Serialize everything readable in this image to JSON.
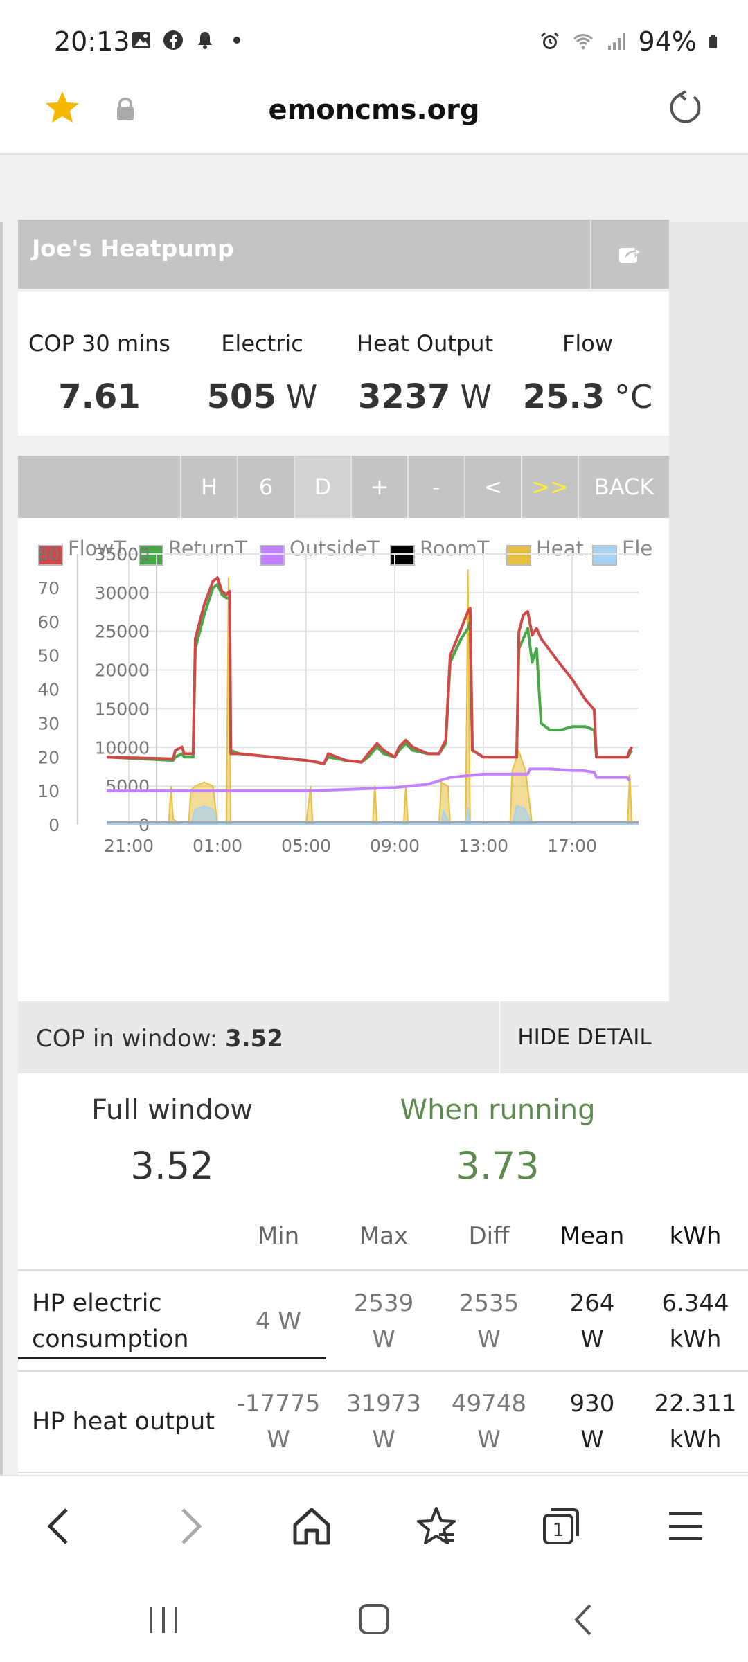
{
  "status_bar": {
    "time": "20:13",
    "battery": "94%",
    "left_icons": [
      "image-icon",
      "facebook-icon",
      "bell-icon",
      "dot-icon"
    ],
    "right_icons": [
      "alarm-icon",
      "wifi-icon",
      "signal-icon",
      "battery-icon"
    ]
  },
  "browser": {
    "url": "emoncms.org"
  },
  "app": {
    "title": "Joe's Heatpump",
    "stats": [
      {
        "label": "COP 30 mins",
        "value": "7.61",
        "unit": ""
      },
      {
        "label": "Electric",
        "value": "505",
        "unit": "W"
      },
      {
        "label": "Heat Output",
        "value": "3237",
        "unit": "W"
      },
      {
        "label": "Flow",
        "value": "25.3",
        "unit": "°C"
      }
    ],
    "toolbar": [
      "H",
      "6",
      "D",
      "+",
      "-",
      "<",
      ">>",
      "BACK"
    ],
    "cop_label": "COP in window:",
    "cop_value": "3.52",
    "hide_detail": "HIDE DETAIL",
    "summary": {
      "full_label": "Full window",
      "full_value": "3.52",
      "running_label": "When running",
      "running_value": "3.73"
    },
    "table": {
      "headers": [
        "",
        "Min",
        "Max",
        "Diff",
        "Mean",
        "kWh"
      ],
      "rows": [
        {
          "label": "HP electric consumption",
          "min": "4 W",
          "max_a": "2539",
          "max_b": "W",
          "diff_a": "2535",
          "diff_b": "W",
          "mean_a": "264",
          "mean_b": "W",
          "kwh_a": "6.344",
          "kwh_b": "kWh"
        },
        {
          "label": "HP heat output",
          "min_a": "-17775",
          "min_b": "W",
          "max_a": "31973",
          "max_b": "W",
          "diff_a": "49748",
          "diff_b": "W",
          "mean_a": "930",
          "mean_b": "W",
          "kwh_a": "22.311",
          "kwh_b": "kWh"
        }
      ]
    }
  },
  "colors": {
    "flow": "#d04848",
    "return": "#48a848",
    "outside": "#c080ff",
    "room": "#000000",
    "heat": "#e8c040",
    "elec": "#a8d0f0"
  },
  "chart_data": {
    "type": "line",
    "legend": [
      "FlowT",
      "ReturnT",
      "OutsideT",
      "RoomT",
      "Heat",
      "Ele"
    ],
    "x_ticks": [
      "21:00",
      "01:00",
      "05:00",
      "09:00",
      "13:00",
      "17:00"
    ],
    "y_left_ticks": [
      "0",
      "10",
      "20",
      "30",
      "40",
      "50",
      "60",
      "70",
      "80"
    ],
    "y_right_ticks": [
      "0",
      "5000",
      "10000",
      "15000",
      "20000",
      "25000",
      "30000",
      "35000"
    ],
    "ylim_left": [
      0,
      80
    ],
    "ylim_right": [
      0,
      35000
    ],
    "x_hours_range": [
      20.0,
      44.0
    ],
    "series": [
      {
        "name": "FlowT",
        "axis": "left",
        "points": [
          [
            20.0,
            20
          ],
          [
            23.0,
            19.5
          ],
          [
            23.1,
            22
          ],
          [
            23.4,
            23
          ],
          [
            23.5,
            21
          ],
          [
            23.9,
            21
          ],
          [
            24.0,
            55
          ],
          [
            24.4,
            65
          ],
          [
            24.8,
            72
          ],
          [
            25.0,
            73
          ],
          [
            25.2,
            69
          ],
          [
            25.4,
            68
          ],
          [
            25.55,
            69
          ],
          [
            25.6,
            21
          ],
          [
            26.0,
            21
          ],
          [
            29.0,
            19
          ],
          [
            29.5,
            18.5
          ],
          [
            29.8,
            18
          ],
          [
            30.0,
            21
          ],
          [
            30.8,
            19
          ],
          [
            31.5,
            18.5
          ],
          [
            31.8,
            21
          ],
          [
            32.2,
            24
          ],
          [
            32.5,
            22
          ],
          [
            33.0,
            20
          ],
          [
            33.2,
            23
          ],
          [
            33.5,
            25
          ],
          [
            33.8,
            23
          ],
          [
            34.5,
            21
          ],
          [
            35.0,
            21
          ],
          [
            35.3,
            25
          ],
          [
            35.5,
            50
          ],
          [
            36.0,
            58
          ],
          [
            36.3,
            63
          ],
          [
            36.4,
            64
          ],
          [
            36.5,
            22
          ],
          [
            37.0,
            20
          ],
          [
            38.5,
            20
          ],
          [
            38.6,
            57
          ],
          [
            38.8,
            62
          ],
          [
            39.0,
            63
          ],
          [
            39.2,
            56
          ],
          [
            39.4,
            58
          ],
          [
            39.6,
            55
          ],
          [
            40.4,
            48
          ],
          [
            41.0,
            43
          ],
          [
            41.6,
            37
          ],
          [
            42.0,
            34
          ],
          [
            42.1,
            20
          ],
          [
            43.0,
            20
          ],
          [
            43.5,
            20
          ],
          [
            43.6,
            22
          ],
          [
            43.7,
            23
          ]
        ]
      },
      {
        "name": "ReturnT",
        "axis": "left",
        "points": [
          [
            20.0,
            20
          ],
          [
            23.0,
            19
          ],
          [
            23.1,
            20
          ],
          [
            23.4,
            21
          ],
          [
            23.5,
            20
          ],
          [
            23.9,
            20
          ],
          [
            24.0,
            52
          ],
          [
            24.4,
            62
          ],
          [
            24.8,
            70
          ],
          [
            25.0,
            71
          ],
          [
            25.2,
            68
          ],
          [
            25.4,
            67
          ],
          [
            25.55,
            67
          ],
          [
            25.6,
            22
          ],
          [
            26.0,
            21
          ],
          [
            29.0,
            19
          ],
          [
            29.5,
            18.5
          ],
          [
            29.8,
            18
          ],
          [
            30.0,
            20
          ],
          [
            30.8,
            19
          ],
          [
            31.5,
            18.5
          ],
          [
            31.8,
            20
          ],
          [
            32.2,
            23
          ],
          [
            32.5,
            21
          ],
          [
            33.0,
            20
          ],
          [
            33.2,
            22
          ],
          [
            33.5,
            24
          ],
          [
            33.8,
            22
          ],
          [
            34.5,
            21
          ],
          [
            35.0,
            21
          ],
          [
            35.3,
            24
          ],
          [
            35.5,
            48
          ],
          [
            36.0,
            55
          ],
          [
            36.3,
            58
          ],
          [
            36.4,
            60
          ],
          [
            36.5,
            22
          ],
          [
            37.0,
            20
          ],
          [
            38.5,
            20
          ],
          [
            38.6,
            52
          ],
          [
            38.8,
            55
          ],
          [
            39.0,
            58
          ],
          [
            39.2,
            48
          ],
          [
            39.4,
            52
          ],
          [
            39.6,
            30
          ],
          [
            40.0,
            28
          ],
          [
            40.5,
            28
          ],
          [
            41.0,
            29
          ],
          [
            41.6,
            29
          ],
          [
            42.0,
            28
          ],
          [
            42.1,
            20
          ],
          [
            43.0,
            20
          ],
          [
            43.5,
            20
          ],
          [
            43.6,
            21
          ],
          [
            43.7,
            22
          ]
        ]
      },
      {
        "name": "OutsideT",
        "axis": "left",
        "points": [
          [
            20.0,
            10
          ],
          [
            21.0,
            10
          ],
          [
            23.0,
            10
          ],
          [
            25.0,
            10
          ],
          [
            27.0,
            10
          ],
          [
            29.0,
            10
          ],
          [
            31.0,
            10.5
          ],
          [
            33.0,
            11
          ],
          [
            34.5,
            12
          ],
          [
            35.0,
            13
          ],
          [
            35.5,
            14
          ],
          [
            37.0,
            15
          ],
          [
            39.0,
            15
          ],
          [
            39.1,
            16.5
          ],
          [
            40.0,
            16.5
          ],
          [
            41.0,
            16
          ],
          [
            41.5,
            16
          ],
          [
            42.0,
            15.5
          ],
          [
            42.1,
            14
          ],
          [
            43.5,
            14
          ],
          [
            43.6,
            13
          ]
        ]
      },
      {
        "name": "Heat",
        "axis": "right",
        "points": [
          [
            20.0,
            0
          ],
          [
            22.8,
            0
          ],
          [
            22.9,
            5000
          ],
          [
            23.0,
            800
          ],
          [
            23.3,
            0
          ],
          [
            23.7,
            0
          ],
          [
            23.8,
            4500
          ],
          [
            24.0,
            5000
          ],
          [
            24.4,
            5500
          ],
          [
            24.8,
            5000
          ],
          [
            25.0,
            0
          ],
          [
            25.4,
            0
          ],
          [
            25.5,
            32000
          ],
          [
            25.6,
            0
          ],
          [
            29.0,
            0
          ],
          [
            29.2,
            5000
          ],
          [
            29.3,
            0
          ],
          [
            32.0,
            0
          ],
          [
            32.1,
            5000
          ],
          [
            32.2,
            0
          ],
          [
            33.4,
            0
          ],
          [
            33.5,
            5000
          ],
          [
            33.6,
            0
          ],
          [
            35.0,
            0
          ],
          [
            35.1,
            5500
          ],
          [
            35.4,
            5000
          ],
          [
            35.5,
            0
          ],
          [
            36.2,
            0
          ],
          [
            36.3,
            33000
          ],
          [
            36.4,
            0
          ],
          [
            38.2,
            0
          ],
          [
            38.3,
            7000
          ],
          [
            38.6,
            9500
          ],
          [
            38.9,
            7000
          ],
          [
            39.2,
            0
          ],
          [
            43.5,
            0
          ],
          [
            43.6,
            6500
          ],
          [
            43.7,
            0
          ]
        ]
      },
      {
        "name": "Ele",
        "axis": "right",
        "points": [
          [
            20.0,
            0
          ],
          [
            23.8,
            0
          ],
          [
            24.0,
            2000
          ],
          [
            24.4,
            2400
          ],
          [
            24.8,
            2000
          ],
          [
            25.0,
            0
          ],
          [
            35.1,
            0
          ],
          [
            35.2,
            1800
          ],
          [
            35.5,
            0
          ],
          [
            36.2,
            0
          ],
          [
            36.3,
            2200
          ],
          [
            36.4,
            0
          ],
          [
            38.3,
            0
          ],
          [
            38.5,
            2500
          ],
          [
            38.9,
            2000
          ],
          [
            39.2,
            0
          ],
          [
            44.0,
            0
          ]
        ]
      }
    ]
  }
}
